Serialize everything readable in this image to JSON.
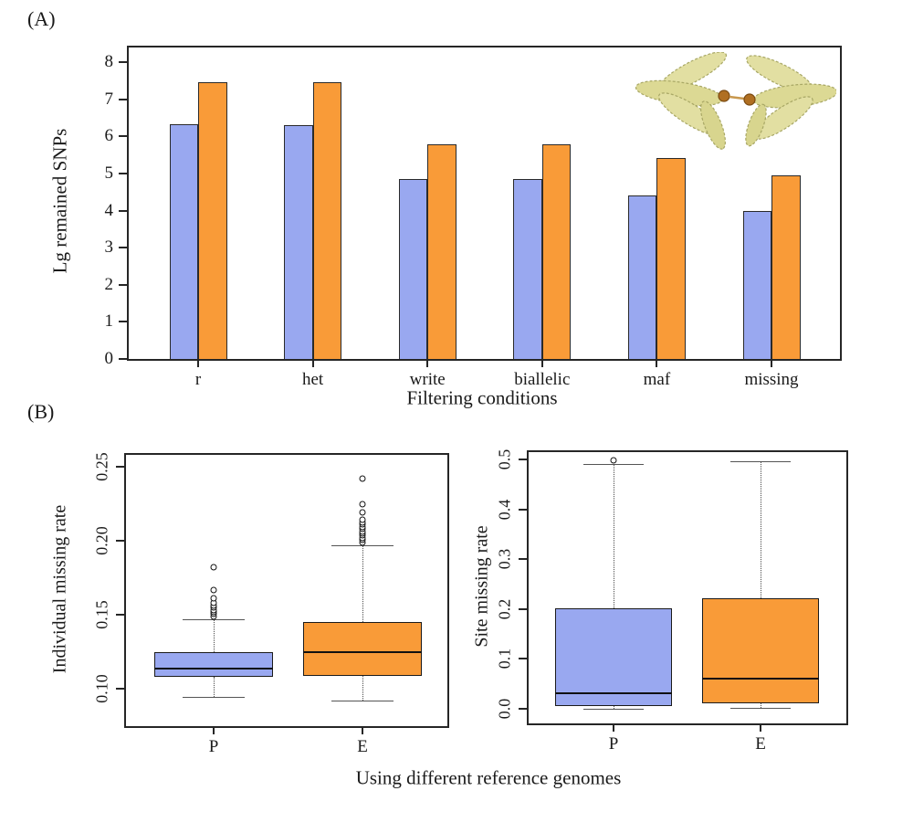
{
  "panel_a": {
    "tag": "(A)",
    "xlabel": "Filtering conditions",
    "ylabel": "Lg remained SNPs"
  },
  "panel_b": {
    "tag": "(B)",
    "xlabel": "Using different reference genomes"
  },
  "colors": {
    "series_p_blue": "#99a8f0",
    "series_e_orange": "#f99b38",
    "axis": "#262626",
    "plant_leaf": "#e2dfa2",
    "plant_center": "#b06f22"
  },
  "chart_data": [
    {
      "type": "bar",
      "title": "",
      "xlabel": "Filtering conditions",
      "ylabel": "Lg remained SNPs",
      "categories": [
        "r",
        "het",
        "write",
        "biallelic",
        "maf",
        "missing"
      ],
      "series": [
        {
          "name": "P",
          "color": "#99a8f0",
          "values": [
            6.32,
            6.31,
            4.86,
            4.85,
            4.42,
            3.98
          ]
        },
        {
          "name": "E",
          "color": "#f99b38",
          "values": [
            7.47,
            7.46,
            5.78,
            5.78,
            5.43,
            4.95
          ]
        }
      ],
      "ylim": [
        0,
        8.4
      ],
      "yticks": [
        0,
        1,
        2,
        3,
        4,
        5,
        6,
        7,
        8
      ],
      "ytick_labels": [
        "0",
        "1",
        "2",
        "3",
        "4",
        "5",
        "6",
        "7",
        "8"
      ],
      "grid": false,
      "legend": "none"
    },
    {
      "type": "boxplot",
      "title": "",
      "xlabel": "",
      "ylabel": "Individual missing rate",
      "categories": [
        "P",
        "E"
      ],
      "ylim": [
        0.075,
        0.258
      ],
      "yticks": [
        0.1,
        0.15,
        0.2,
        0.25
      ],
      "ytick_labels": [
        "0.10",
        "0.15",
        "0.20",
        "0.25"
      ],
      "boxes": [
        {
          "name": "P",
          "color": "#99a8f0",
          "whisker_low": 0.095,
          "q1": 0.108,
          "median": 0.114,
          "q3": 0.125,
          "whisker_high": 0.147,
          "outliers": [
            0.149,
            0.1505,
            0.152,
            0.1535,
            0.155,
            0.1565,
            0.158,
            0.161,
            0.167,
            0.182
          ]
        },
        {
          "name": "E",
          "color": "#f99b38",
          "whisker_low": 0.092,
          "q1": 0.109,
          "median": 0.125,
          "q3": 0.145,
          "whisker_high": 0.197,
          "outliers": [
            0.199,
            0.2005,
            0.202,
            0.2035,
            0.205,
            0.2065,
            0.208,
            0.2095,
            0.211,
            0.2125,
            0.214,
            0.219,
            0.225,
            0.242
          ]
        }
      ],
      "grid": false
    },
    {
      "type": "boxplot",
      "title": "",
      "xlabel": "Using different reference genomes",
      "ylabel": "Site missing rate",
      "categories": [
        "P",
        "E"
      ],
      "ylim": [
        -0.03,
        0.515
      ],
      "yticks": [
        0.0,
        0.1,
        0.2,
        0.3,
        0.4,
        0.5
      ],
      "ytick_labels": [
        "0.0",
        "0.1",
        "0.2",
        "0.3",
        "0.4",
        "0.5"
      ],
      "boxes": [
        {
          "name": "P",
          "color": "#99a8f0",
          "whisker_low": 0.0,
          "q1": 0.005,
          "median": 0.031,
          "q3": 0.202,
          "whisker_high": 0.492,
          "outliers": [
            0.498
          ]
        },
        {
          "name": "E",
          "color": "#f99b38",
          "whisker_low": 0.001,
          "q1": 0.01,
          "median": 0.06,
          "q3": 0.222,
          "whisker_high": 0.497,
          "outliers": []
        }
      ],
      "grid": false
    }
  ]
}
